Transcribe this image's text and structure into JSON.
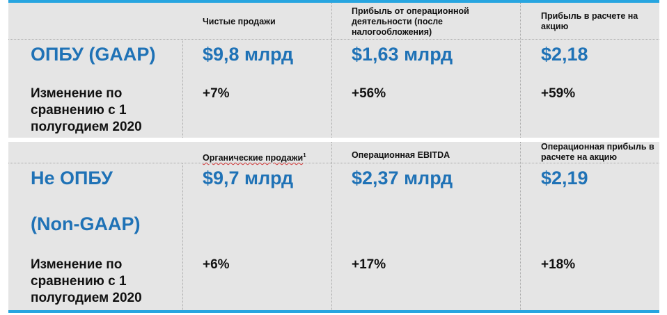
{
  "colors": {
    "accent": "#1f72b6",
    "bar": "#27a5e0",
    "panel": "#e5e5e5"
  },
  "gaap": {
    "headers": [
      "Чистые продажи",
      "Прибыль от операционной деятельности (после налогообложения)",
      "Прибыль в расчете на акцию"
    ],
    "title": "ОПБУ (GAAP)",
    "values": [
      "$9,8 млрд",
      "$1,63 млрд",
      "$2,18"
    ],
    "change_label": "Изменение по сравнению с 1 полугодием 2020",
    "changes": [
      "+7%",
      "+56%",
      "+59%"
    ]
  },
  "non_gaap": {
    "headers": [
      "Органические продажи",
      "Операционная EBITDA",
      "Операционная прибыль в расчете на акцию"
    ],
    "header_footnote": "1",
    "title_line1": "Не ОПБУ",
    "title_line2": "(Non-GAAP)",
    "values": [
      "$9,7 млрд",
      "$2,37 млрд",
      "$2,19"
    ],
    "change_label": "Изменение по сравнению с 1 полугодием 2020",
    "changes": [
      "+6%",
      "+17%",
      "+18%"
    ]
  }
}
